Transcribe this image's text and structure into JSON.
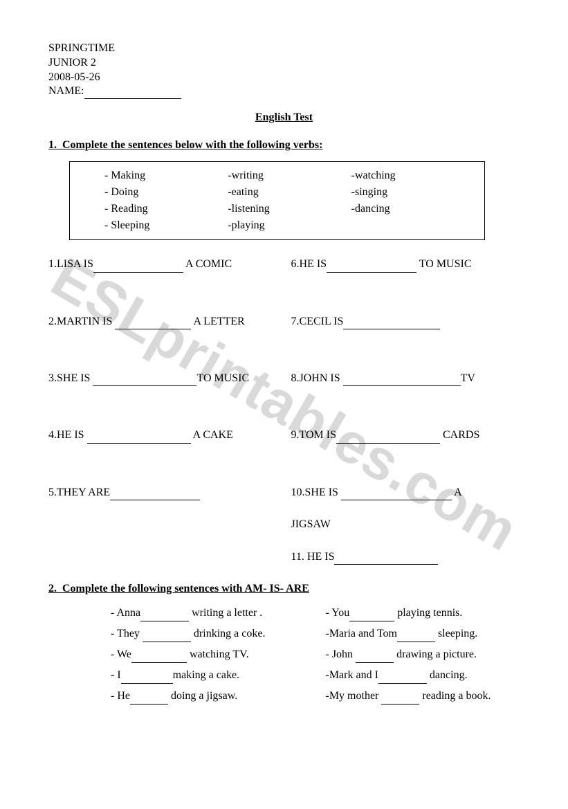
{
  "watermark": "ESLprintables.com",
  "header": {
    "line1": "SPRINGTIME",
    "line2": "JUNIOR 2",
    "line3": "2008-05-26",
    "name_label": "NAME:"
  },
  "title": "English Test",
  "section1": {
    "number": "1.",
    "instruction": "Complete the sentences below with the following verbs:",
    "verbs": {
      "col1": [
        "-    Making",
        "-    Doing",
        "-    Reading",
        "-    Sleeping"
      ],
      "col2": [
        "-writing",
        "-eating",
        "-listening",
        "-playing"
      ],
      "col3": [
        "-watching",
        "-singing",
        "-dancing",
        ""
      ]
    },
    "questions_left": [
      {
        "pre": "1.LISA IS",
        "blank_w": 130,
        "post": " A COMIC"
      },
      {
        "pre": "2.MARTIN IS ",
        "blank_w": 110,
        "post": " A LETTER"
      },
      {
        "pre": "3.SHE IS ",
        "blank_w": 150,
        "post": "TO MUSIC"
      },
      {
        "pre": "4.HE IS ",
        "blank_w": 150,
        "post": " A CAKE"
      },
      {
        "pre": "5.THEY ARE",
        "blank_w": 130,
        "post": ""
      }
    ],
    "questions_right": [
      {
        "pre": "6.HE IS",
        "blank_w": 130,
        "post": " TO MUSIC"
      },
      {
        "pre": "7.CECIL IS",
        "blank_w": 140,
        "post": ""
      },
      {
        "pre": "8.JOHN IS ",
        "blank_w": 170,
        "post": "TV"
      },
      {
        "pre": "9.TOM IS",
        "blank_w": 150,
        "post": " CARDS"
      },
      {
        "pre": "10.SHE IS ",
        "blank_w": 160,
        "post": " A",
        "second_line": "JIGSAW"
      }
    ],
    "q11": {
      "pre": "11. HE IS",
      "blank_w": 150,
      "post": ""
    }
  },
  "section2": {
    "number": "2.",
    "instruction": "Complete the following sentences with AM- IS- ARE",
    "left": [
      {
        "pre": "-    Anna",
        "blank_w": 70,
        "post": " writing a letter    ."
      },
      {
        "pre": "-    They ",
        "blank_w": 70,
        "post": " drinking a coke."
      },
      {
        "pre": "-    We",
        "blank_w": 80,
        "post": " watching TV."
      },
      {
        "pre": "-    I",
        "blank_w": 75,
        "post": "making a cake."
      },
      {
        "pre": "-    He",
        "blank_w": 55,
        "post": " doing a jigsaw."
      }
    ],
    "right": [
      {
        "pre": "- You",
        "blank_w": 65,
        "post": " playing tennis."
      },
      {
        "pre": "-Maria and Tom",
        "blank_w": 55,
        "post": " sleeping."
      },
      {
        "pre": "- John ",
        "blank_w": 55,
        "post": " drawing a picture."
      },
      {
        "pre": "-Mark and I",
        "blank_w": 70,
        "post": " dancing."
      },
      {
        "pre": "-My mother ",
        "blank_w": 55,
        "post": " reading a book."
      }
    ]
  }
}
